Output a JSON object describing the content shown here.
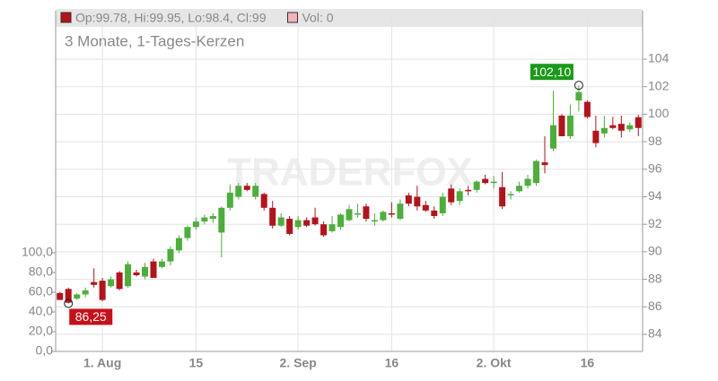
{
  "chart_data": {
    "type": "candlestick",
    "legend": [
      {
        "label": "Op:99.78, Hi:99.95, Lo:98.4, Cl:99",
        "color": "#b5121b"
      },
      {
        "label": "Vol: 0",
        "color": "#f4b4b8"
      }
    ],
    "subtitle": "3 Monate, 1-Tages-Kerzen",
    "watermark": "TRADERFOX",
    "up_color": "#4caf3a",
    "down_color": "#b5121b",
    "categories": [
      null,
      null,
      null,
      null,
      null,
      "1. Aug",
      null,
      null,
      null,
      null,
      null,
      null,
      null,
      null,
      null,
      null,
      "15",
      null,
      null,
      null,
      null,
      null,
      null,
      null,
      null,
      null,
      null,
      null,
      "2. Sep",
      null,
      null,
      null,
      null,
      null,
      null,
      null,
      null,
      null,
      null,
      "16",
      null,
      null,
      null,
      null,
      null,
      null,
      null,
      null,
      null,
      null,
      null,
      "2. Okt",
      null,
      null,
      null,
      null,
      null,
      null,
      null,
      null,
      null,
      null,
      "16",
      null,
      null,
      null,
      null,
      null,
      null
    ],
    "open": [
      87.0,
      87.3,
      86.6,
      86.9,
      87.8,
      87.9,
      87.5,
      88.5,
      87.5,
      88.5,
      88.2,
      89.3,
      88.9,
      89.3,
      90.1,
      91.0,
      91.8,
      92.2,
      92.4,
      91.4,
      93.2,
      94.0,
      94.8,
      94.0,
      94.2,
      93.2,
      91.9,
      92.4,
      91.8,
      92.3,
      92.5,
      92.0,
      91.5,
      91.8,
      92.3,
      92.7,
      93.3,
      92.2,
      92.3,
      92.8,
      92.4,
      94.1,
      94.0,
      93.4,
      93.0,
      92.8,
      94.6,
      93.7,
      94.5,
      94.5,
      95.3,
      95.0,
      94.7,
      94.1,
      94.4,
      94.8,
      95.0,
      96.5,
      97.5,
      99.9,
      98.4,
      101.0,
      100.9,
      98.8,
      98.6,
      99.2,
      99.3,
      98.9,
      99.78
    ],
    "high": [
      87.1,
      87.4,
      87.0,
      87.4,
      88.8,
      88.1,
      88.2,
      88.6,
      89.3,
      88.7,
      89.2,
      89.5,
      89.5,
      90.4,
      91.2,
      91.9,
      92.5,
      92.7,
      92.8,
      93.3,
      94.9,
      95.0,
      95.0,
      95.0,
      94.3,
      93.7,
      92.8,
      92.6,
      92.6,
      92.5,
      93.2,
      92.2,
      92.6,
      92.8,
      93.4,
      93.5,
      93.5,
      92.8,
      93.0,
      93.6,
      93.8,
      94.3,
      94.8,
      93.7,
      93.3,
      94.3,
      94.9,
      94.6,
      94.8,
      95.2,
      95.6,
      95.5,
      95.8,
      94.4,
      95.1,
      95.6,
      96.7,
      98.4,
      101.7,
      100.0,
      100.7,
      102.1,
      101.0,
      99.9,
      99.9,
      99.8,
      99.9,
      99.4,
      99.95
    ],
    "low": [
      86.5,
      86.25,
      86.5,
      86.7,
      87.4,
      86.4,
      87.4,
      87.2,
      87.4,
      88.2,
      88.0,
      88.1,
      88.8,
      89.0,
      89.9,
      90.8,
      91.6,
      92.0,
      92.1,
      89.6,
      93.0,
      93.8,
      94.4,
      93.8,
      93.0,
      91.7,
      91.8,
      91.2,
      91.6,
      91.8,
      91.9,
      91.1,
      91.4,
      91.6,
      92.2,
      92.5,
      92.2,
      91.9,
      92.2,
      92.5,
      92.3,
      93.3,
      93.0,
      92.9,
      92.4,
      92.6,
      93.4,
      93.4,
      94.1,
      94.3,
      94.9,
      94.6,
      93.1,
      93.8,
      94.3,
      94.6,
      94.8,
      95.7,
      97.3,
      98.4,
      98.2,
      100.2,
      99.7,
      97.6,
      98.3,
      98.9,
      98.3,
      98.7,
      98.4
    ],
    "close": [
      86.5,
      86.3,
      86.9,
      87.2,
      87.6,
      86.5,
      88.0,
      87.3,
      89.1,
      88.3,
      88.9,
      88.1,
      89.3,
      90.2,
      91.0,
      91.8,
      92.2,
      92.5,
      92.6,
      93.2,
      94.3,
      94.8,
      94.5,
      94.8,
      93.2,
      91.9,
      92.5,
      91.3,
      92.3,
      91.9,
      92.0,
      91.2,
      92.0,
      92.7,
      93.1,
      92.8,
      92.4,
      92.3,
      92.9,
      92.7,
      93.5,
      93.5,
      93.3,
      93.0,
      92.6,
      94.0,
      93.6,
      94.4,
      94.4,
      95.1,
      95.0,
      95.1,
      93.3,
      94.2,
      94.8,
      95.3,
      96.6,
      96.3,
      99.2,
      98.4,
      99.9,
      101.6,
      99.8,
      97.9,
      99.0,
      99.0,
      98.8,
      99.2,
      99
    ],
    "annotations": [
      {
        "label": "86,25",
        "value": 86.25,
        "index": 1,
        "color": "#c8101a"
      },
      {
        "label": "102,10",
        "value": 102.1,
        "index": 61,
        "color": "#1a9a1a"
      }
    ],
    "ylim": [
      82.76,
      107.52
    ],
    "yticks": [
      84,
      86,
      88,
      90,
      92,
      94,
      96,
      98,
      100,
      102,
      104
    ],
    "y2lim": [
      0,
      345.5
    ],
    "y2ticks": [
      {
        "value": 0,
        "label": "0,0"
      },
      {
        "value": 20,
        "label": "20,0"
      },
      {
        "value": 40,
        "label": "40,0"
      },
      {
        "value": 60,
        "label": "60,0"
      },
      {
        "value": 80,
        "label": "80,0"
      },
      {
        "value": 100,
        "label": "100,0"
      }
    ],
    "grid": true
  }
}
